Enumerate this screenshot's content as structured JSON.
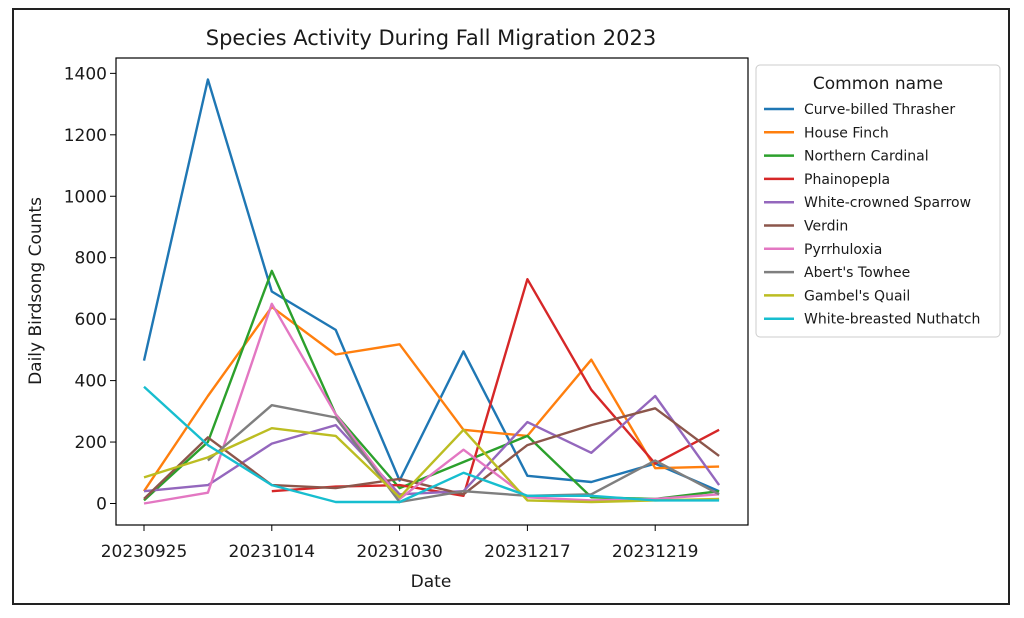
{
  "chart_data": {
    "type": "line",
    "title": "Species Activity During Fall Migration 2023",
    "xlabel": "Date",
    "ylabel": "Daily Birdsong Counts",
    "ylim": [
      -70,
      1450
    ],
    "yticks": [
      0,
      200,
      400,
      600,
      800,
      1000,
      1200,
      1400
    ],
    "x": [
      "20230925",
      "",
      "20231014",
      "",
      "20231030",
      "",
      "20231217",
      "",
      "20231219",
      ""
    ],
    "xtick_labels": [
      "20230925",
      "20231014",
      "20231030",
      "20231217",
      "20231219"
    ],
    "legend": {
      "title": "Common name",
      "position": "outside-right"
    },
    "grid": false,
    "series": [
      {
        "name": "Curve-billed Thrasher",
        "color": "#1f77b4",
        "values": [
          465,
          1380,
          690,
          565,
          75,
          495,
          90,
          70,
          130,
          40
        ]
      },
      {
        "name": "House Finch",
        "color": "#ff7f0e",
        "values": [
          40,
          350,
          640,
          485,
          518,
          240,
          220,
          468,
          115,
          120
        ]
      },
      {
        "name": "Northern Cardinal",
        "color": "#2ca02c",
        "values": [
          10,
          200,
          757,
          290,
          50,
          135,
          220,
          20,
          15,
          40
        ]
      },
      {
        "name": "Phainopepla",
        "color": "#d62728",
        "values": [
          null,
          null,
          40,
          55,
          60,
          25,
          730,
          370,
          130,
          240
        ]
      },
      {
        "name": "White-crowned Sparrow",
        "color": "#9467bd",
        "values": [
          40,
          60,
          195,
          255,
          30,
          40,
          265,
          165,
          350,
          60
        ]
      },
      {
        "name": "Verdin",
        "color": "#8c564b",
        "values": [
          15,
          215,
          60,
          50,
          80,
          30,
          190,
          255,
          310,
          155
        ]
      },
      {
        "name": "Pyrrhuloxia",
        "color": "#e377c2",
        "values": [
          0,
          35,
          650,
          290,
          15,
          175,
          20,
          10,
          15,
          30
        ]
      },
      {
        "name": "Abert's Towhee",
        "color": "#7f7f7f",
        "values": [
          null,
          140,
          320,
          280,
          5,
          40,
          25,
          30,
          140,
          30
        ]
      },
      {
        "name": "Gambel's Quail",
        "color": "#bcbd22",
        "values": [
          85,
          150,
          245,
          220,
          20,
          240,
          10,
          5,
          10,
          15
        ]
      },
      {
        "name": "White-breasted Nuthatch",
        "color": "#17becf",
        "values": [
          380,
          190,
          60,
          5,
          5,
          100,
          25,
          25,
          10,
          10
        ]
      }
    ]
  }
}
